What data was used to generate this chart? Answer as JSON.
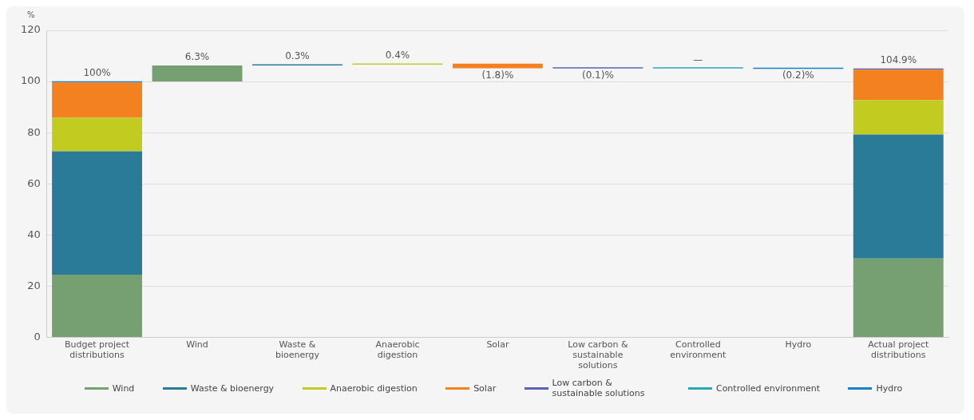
{
  "chart_data": {
    "type": "bar",
    "ylabel": "%",
    "categories": [
      "Budget project distributions",
      "Wind",
      "Waste & bioenergy",
      "Anaerobic digestion",
      "Solar",
      "Low carbon & sustainable solutions",
      "Controlled environment",
      "Hydro",
      "Actual project distributions"
    ],
    "series": [
      {
        "name": "Wind",
        "color": "#76a072",
        "values": [
          24.5,
          6.3,
          null,
          null,
          null,
          null,
          null,
          null,
          30.8
        ],
        "base": [
          0,
          100,
          null,
          null,
          null,
          null,
          null,
          null,
          0
        ]
      },
      {
        "name": "Waste & bioenergy",
        "color": "#2a7b98",
        "values": [
          48.2,
          null,
          0.3,
          null,
          null,
          null,
          null,
          null,
          48.5
        ],
        "base": [
          24.5,
          null,
          106.3,
          null,
          null,
          null,
          null,
          null,
          30.8
        ]
      },
      {
        "name": "Anaerobic digestion",
        "color": "#c2cb1f",
        "values": [
          13.1,
          null,
          null,
          0.4,
          null,
          null,
          null,
          null,
          13.5
        ],
        "base": [
          72.7,
          null,
          null,
          106.6,
          null,
          null,
          null,
          null,
          79.3
        ]
      },
      {
        "name": "Solar",
        "color": "#f38120",
        "values": [
          13.8,
          null,
          null,
          null,
          -1.8,
          null,
          null,
          null,
          11.8
        ],
        "base": [
          85.8,
          null,
          null,
          null,
          107,
          null,
          null,
          null,
          92.8
        ]
      },
      {
        "name": "Low carbon & sustainable solutions",
        "color": "#5b62b0",
        "values": [
          null,
          null,
          null,
          null,
          null,
          -0.1,
          null,
          null,
          0.3
        ],
        "base": [
          null,
          null,
          null,
          null,
          null,
          105.2,
          null,
          null,
          104.6
        ]
      },
      {
        "name": "Controlled environment",
        "color": "#2aa8b4",
        "values": [
          null,
          null,
          null,
          null,
          null,
          null,
          0,
          null,
          null
        ],
        "base": [
          null,
          null,
          null,
          null,
          null,
          null,
          105.1,
          null,
          null
        ]
      },
      {
        "name": "Hydro",
        "color": "#1a7fc9",
        "values": [
          0.4,
          null,
          null,
          null,
          null,
          null,
          null,
          -0.2,
          null
        ],
        "base": [
          99.6,
          null,
          null,
          null,
          null,
          null,
          null,
          105.1,
          null
        ]
      }
    ],
    "totals": [
      "100%",
      "6.3%",
      "0.3%",
      "0.4%",
      "(1.8)%",
      "(0.1)%",
      "—",
      "(0.2)%",
      "104.9%"
    ],
    "ylim": [
      0,
      120
    ],
    "yticks": [
      0,
      20,
      40,
      60,
      80,
      100,
      120
    ],
    "grid": "y",
    "legend": "bottom"
  }
}
